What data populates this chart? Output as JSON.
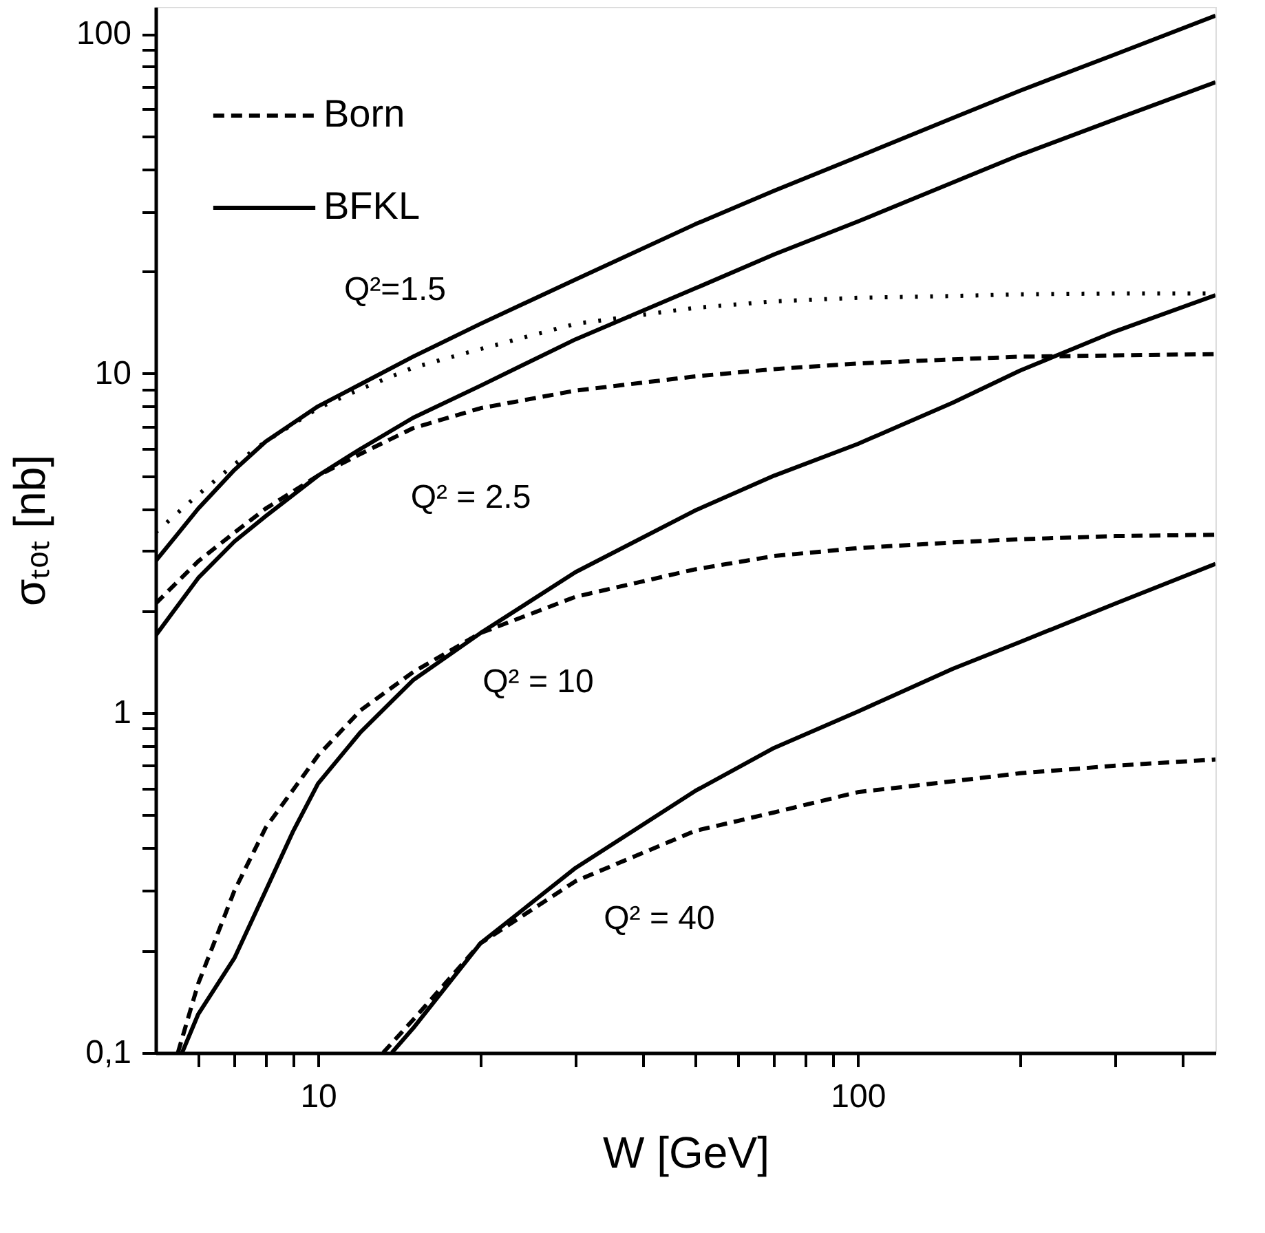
{
  "chart_data": {
    "type": "line",
    "xlabel": "W [GeV]",
    "ylabel": "σₜₒₜ [nb]",
    "log": "xy",
    "grid": false,
    "legend": "top left",
    "marker": "none",
    "xlim": [
      5,
      460
    ],
    "ylim": [
      0.1,
      120
    ],
    "xticks": [
      {
        "value": 6,
        "label": null
      },
      {
        "value": 7,
        "label": null
      },
      {
        "value": 8,
        "label": null
      },
      {
        "value": 9,
        "label": null
      },
      10,
      {
        "value": 20,
        "label": null
      },
      {
        "value": 30,
        "label": null
      },
      {
        "value": 40,
        "label": null
      },
      {
        "value": 50,
        "label": null
      },
      {
        "value": 60,
        "label": null
      },
      {
        "value": 70,
        "label": null
      },
      {
        "value": 80,
        "label": null
      },
      {
        "value": 90,
        "label": null
      },
      100,
      {
        "value": 200,
        "label": null
      },
      {
        "value": 300,
        "label": null
      },
      {
        "value": 400,
        "label": null
      }
    ],
    "yticks": [
      {
        "value": 0.1,
        "label": "0,1"
      },
      {
        "value": 0.2,
        "label": null
      },
      {
        "value": 0.3,
        "label": null
      },
      {
        "value": 0.4,
        "label": null
      },
      {
        "value": 0.5,
        "label": null
      },
      {
        "value": 0.6,
        "label": null
      },
      {
        "value": 0.7,
        "label": null
      },
      {
        "value": 0.8,
        "label": null
      },
      {
        "value": 0.9,
        "label": null
      },
      1,
      {
        "value": 2,
        "label": null
      },
      {
        "value": 3,
        "label": null
      },
      {
        "value": 4,
        "label": null
      },
      {
        "value": 5,
        "label": null
      },
      {
        "value": 6,
        "label": null
      },
      {
        "value": 7,
        "label": null
      },
      {
        "value": 8,
        "label": null
      },
      {
        "value": 9,
        "label": null
      },
      10,
      {
        "value": 20,
        "label": null
      },
      {
        "value": 30,
        "label": null
      },
      {
        "value": 40,
        "label": null
      },
      {
        "value": 50,
        "label": null
      },
      {
        "value": 60,
        "label": null
      },
      {
        "value": 70,
        "label": null
      },
      {
        "value": 80,
        "label": null
      },
      {
        "value": 90,
        "label": null
      },
      100
    ],
    "series": [
      {
        "color": "#000000",
        "line_style": "dotted",
        "x": [
          5,
          6,
          7,
          8,
          10,
          12,
          15,
          20,
          30,
          50,
          70,
          100,
          150,
          200,
          300,
          460
        ],
        "values": [
          3.4,
          4.4,
          5.4,
          6.3,
          7.9,
          9.0,
          10.4,
          11.8,
          14.0,
          15.6,
          16.3,
          16.7,
          16.9,
          17.1,
          17.2,
          17.2
        ]
      },
      {
        "name": "Born",
        "color": "#000000",
        "line_style": "dashed",
        "x": [
          5,
          6,
          7,
          8,
          10,
          12,
          15,
          20,
          30,
          50,
          70,
          100,
          150,
          200,
          300,
          460
        ],
        "values": [
          2.1,
          2.8,
          3.4,
          4.0,
          5.0,
          5.8,
          6.9,
          7.9,
          8.9,
          9.8,
          10.3,
          10.7,
          11.0,
          11.2,
          11.3,
          11.4
        ]
      },
      {
        "name": "BFKL",
        "color": "#000000",
        "line_style": "solid",
        "x": [
          5,
          6,
          7,
          8,
          10,
          12,
          15,
          20,
          30,
          50,
          70,
          100,
          150,
          200,
          300,
          460
        ],
        "values": [
          2.8,
          4.0,
          5.2,
          6.3,
          8.0,
          9.3,
          11.2,
          14.0,
          18.9,
          27.5,
          34.5,
          43.4,
          56.5,
          68,
          87,
          113
        ]
      },
      {
        "color": "#000000",
        "line_style": "solid",
        "x": [
          5,
          6,
          7,
          8,
          10,
          12,
          15,
          20,
          30,
          50,
          70,
          100,
          150,
          200,
          300,
          460
        ],
        "values": [
          1.69,
          2.5,
          3.2,
          3.8,
          5.0,
          6.0,
          7.4,
          9.2,
          12.6,
          17.8,
          22.4,
          28,
          36.5,
          44,
          56,
          72
        ]
      },
      {
        "color": "#000000",
        "line_style": "dashed",
        "x": [
          5.5,
          6,
          7,
          8,
          10,
          12,
          15,
          20,
          30,
          50,
          70,
          100,
          150,
          200,
          300,
          460
        ],
        "values": [
          0.1,
          0.16,
          0.3,
          0.46,
          0.75,
          1.02,
          1.32,
          1.72,
          2.2,
          2.65,
          2.9,
          3.06,
          3.18,
          3.25,
          3.32,
          3.35
        ]
      },
      {
        "color": "#000000",
        "line_style": "solid",
        "x": [
          5.6,
          6,
          7,
          8,
          9,
          10,
          12,
          15,
          20,
          30,
          50,
          70,
          100,
          150,
          200,
          300,
          460
        ],
        "values": [
          0.1,
          0.13,
          0.19,
          0.3,
          0.45,
          0.62,
          0.88,
          1.25,
          1.72,
          2.6,
          3.95,
          5.0,
          6.2,
          8.2,
          10.2,
          13.3,
          17
        ]
      },
      {
        "color": "#000000",
        "line_style": "dashed",
        "x": [
          13.2,
          15,
          20,
          30,
          50,
          70,
          100,
          150,
          200,
          300,
          460
        ],
        "values": [
          0.1,
          0.125,
          0.21,
          0.32,
          0.45,
          0.51,
          0.585,
          0.63,
          0.665,
          0.7,
          0.73
        ]
      },
      {
        "color": "#000000",
        "line_style": "solid",
        "x": [
          13.7,
          15,
          20,
          30,
          50,
          70,
          100,
          150,
          200,
          300,
          460
        ],
        "values": [
          0.1,
          0.118,
          0.21,
          0.35,
          0.59,
          0.79,
          1.01,
          1.35,
          1.62,
          2.1,
          2.75
        ]
      }
    ],
    "annotations": [
      "Q²=1.5",
      "Q² = 2.5",
      "Q² = 10",
      "Q² = 40"
    ]
  }
}
